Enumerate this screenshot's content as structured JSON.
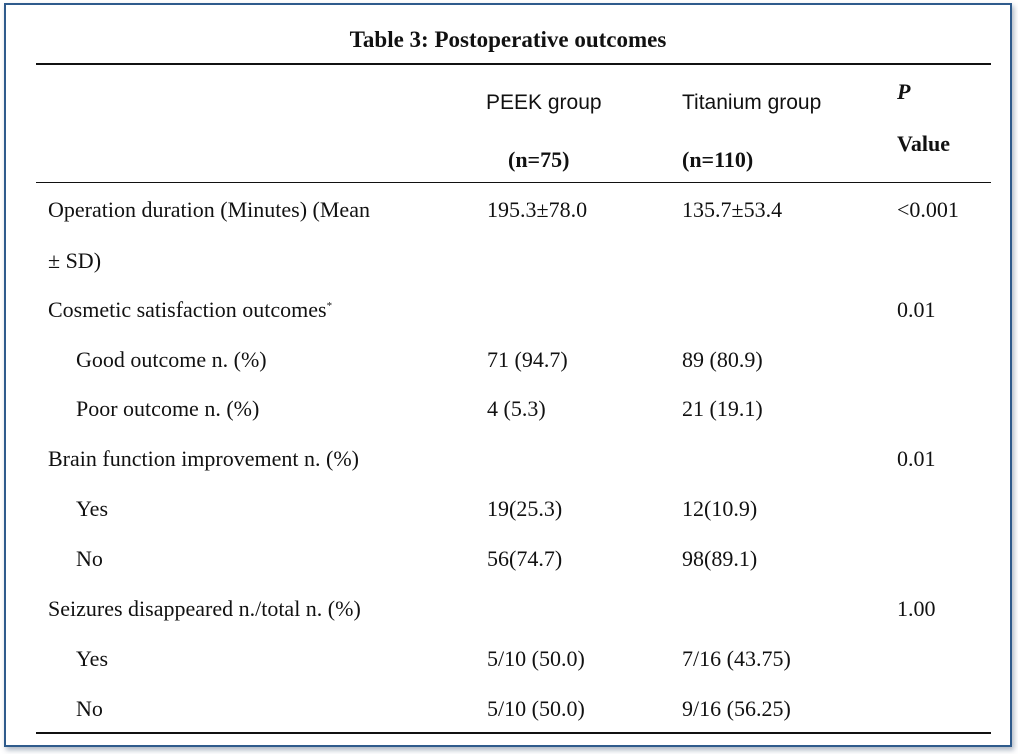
{
  "table": {
    "title": "Table 3: Postoperative outcomes",
    "header": {
      "peek_name": "PEEK group",
      "peek_n": "(n=75)",
      "ti_name": "Titanium group",
      "ti_n": "(n=110)",
      "p_label": "P",
      "p_value_label": "Value"
    },
    "rows": [
      {
        "label": "Operation duration (Minutes) (Mean",
        "label_cont": "± SD)",
        "peek": "195.3±78.0",
        "titanium": "135.7±53.4",
        "p": "<0.001"
      },
      {
        "label": "Cosmetic satisfaction outcomes",
        "note": "*",
        "peek": "",
        "titanium": "",
        "p": "0.01"
      },
      {
        "label": "Good outcome n. (%)",
        "peek": "71 (94.7)",
        "titanium": "89 (80.9)",
        "p": ""
      },
      {
        "label": "Poor outcome n. (%)",
        "peek": "4 (5.3)",
        "titanium": "21 (19.1)",
        "p": ""
      },
      {
        "label": "Brain function improvement n. (%)",
        "peek": "",
        "titanium": "",
        "p": "0.01"
      },
      {
        "label": "Yes",
        "peek": "19(25.3)",
        "titanium": "12(10.9)",
        "p": ""
      },
      {
        "label": "No",
        "peek": "56(74.7)",
        "titanium": "98(89.1)",
        "p": ""
      },
      {
        "label": "Seizures disappeared n./total n. (%)",
        "peek": "",
        "titanium": "",
        "p": "1.00"
      },
      {
        "label": "Yes",
        "peek": "5/10 (50.0)",
        "titanium": "7/16 (43.75)",
        "p": ""
      },
      {
        "label": "No",
        "peek": "5/10 (50.0)",
        "titanium": "9/16 (56.25)",
        "p": ""
      }
    ]
  }
}
